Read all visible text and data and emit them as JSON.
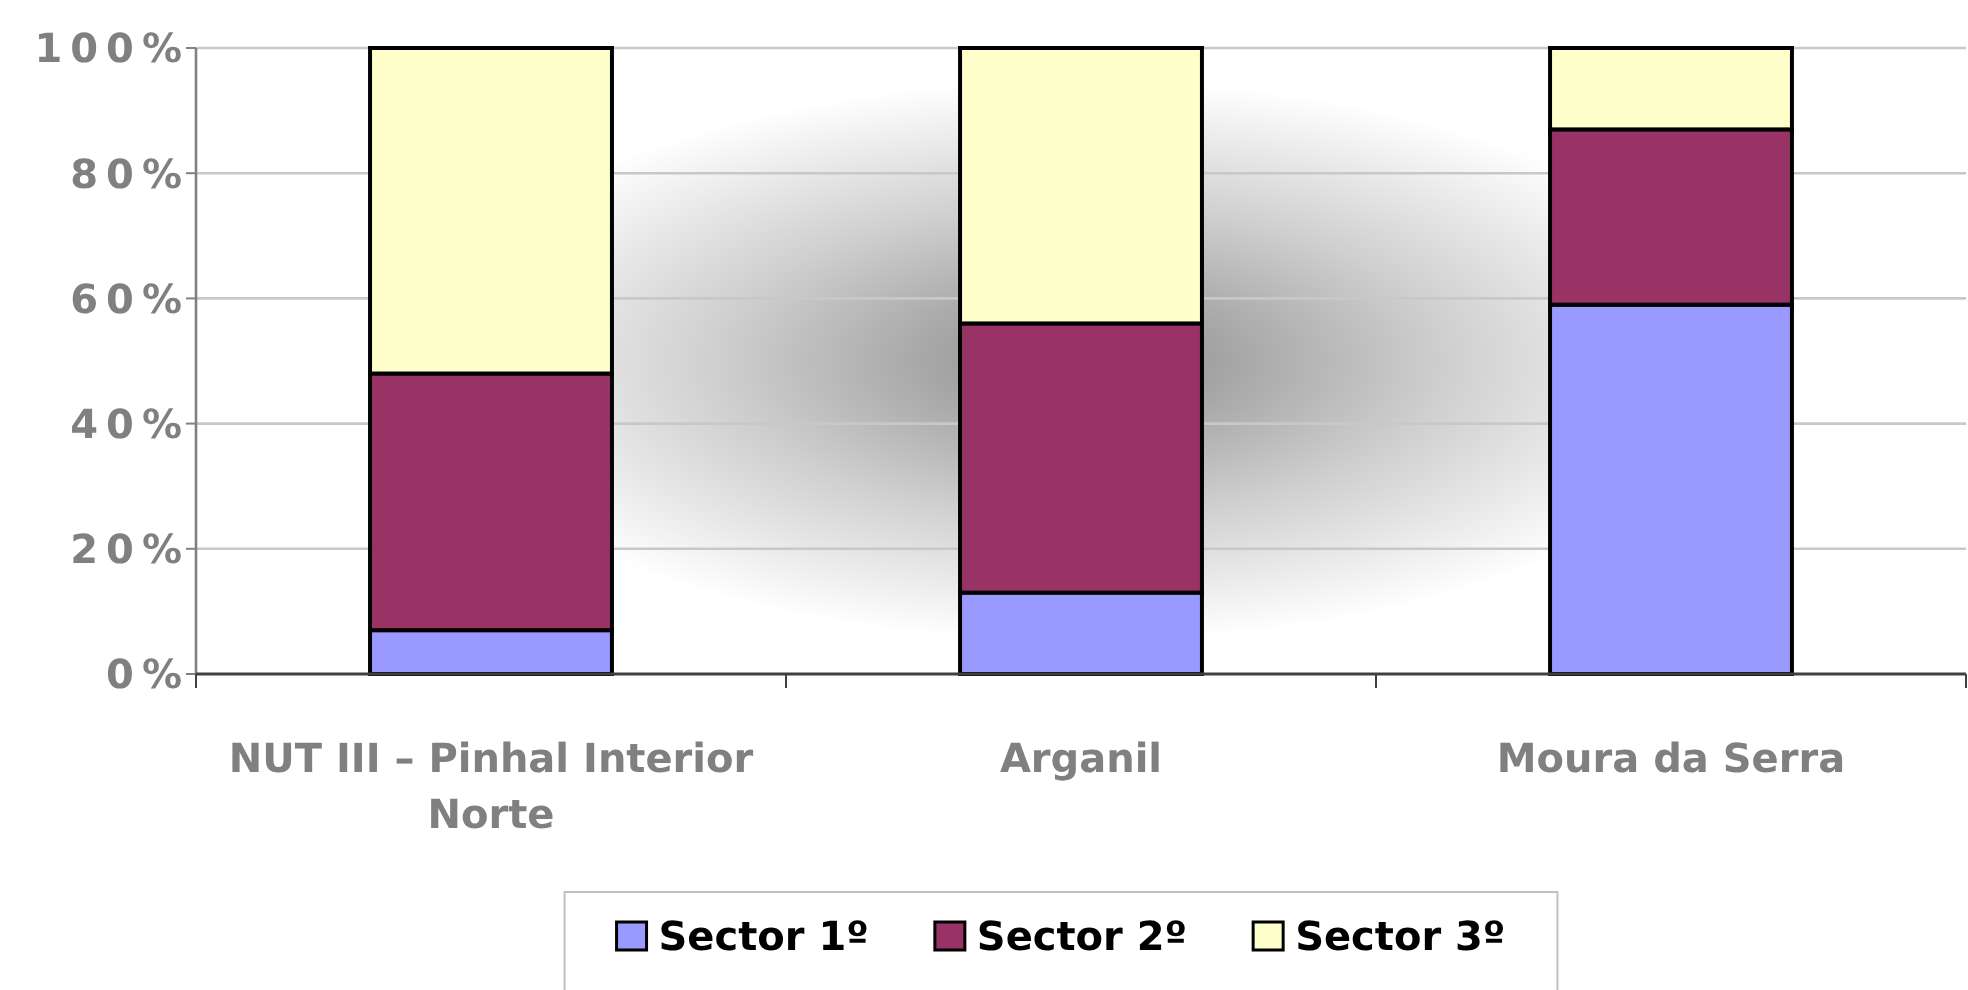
{
  "chart_data": {
    "type": "bar",
    "stacked": true,
    "categories": [
      "NUT III – Pinhal Interior Norte",
      "Arganil",
      "Moura da Serra"
    ],
    "series": [
      {
        "name": "Sector 1º",
        "color": "#9999ff",
        "values": [
          7,
          13,
          59
        ]
      },
      {
        "name": "Sector 2º",
        "color": "#993366",
        "values": [
          41,
          43,
          28
        ]
      },
      {
        "name": "Sector 3º",
        "color": "#ffffcc",
        "values": [
          52,
          44,
          13
        ]
      }
    ],
    "ylim": [
      0,
      100
    ],
    "yticks": [
      {
        "value": 0,
        "label": "0%"
      },
      {
        "value": 20,
        "label": "20%"
      },
      {
        "value": 40,
        "label": "40%"
      },
      {
        "value": 60,
        "label": "60%"
      },
      {
        "value": 80,
        "label": "80%"
      },
      {
        "value": 100,
        "label": "100%"
      }
    ],
    "grid": "y",
    "legend": "bottom"
  }
}
